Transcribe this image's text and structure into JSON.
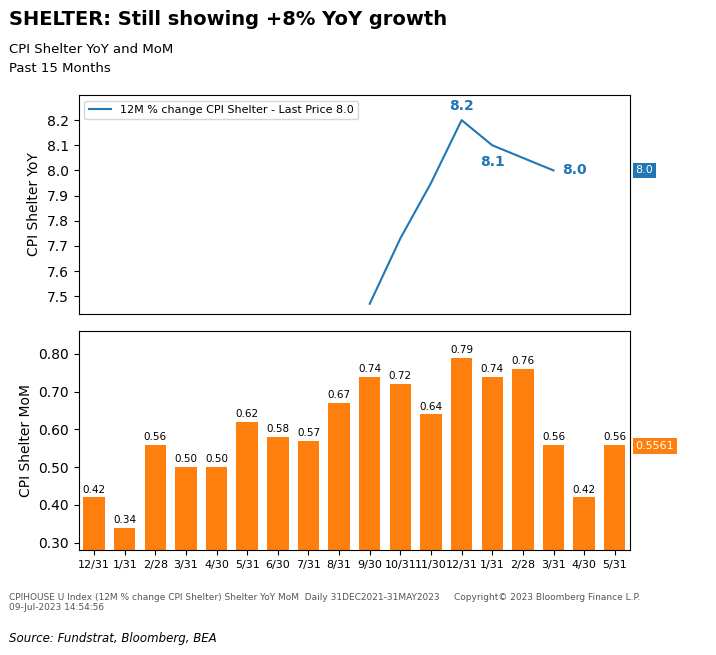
{
  "chart_data": [
    {
      "type": "line",
      "title": "SHELTER: Still showing +8% YoY growth",
      "subtitles": [
        "CPI Shelter YoY and MoM",
        "Past 15 Months"
      ],
      "footer": "CPIHOUSE U Index (12M % change CPI Shelter) Shelter YoY MoM  Daily 31DEC2021-31MAY2023     Copyright© 2023 Bloomberg Finance L.P.               09-Jul-2023 14:54:56",
      "source": "Source: Fundstrat, Bloomberg, BEA",
      "ylabel": "CPI Shelter YoY",
      "x": [
        9,
        10,
        11,
        12,
        13,
        14,
        15
      ],
      "series": [
        {
          "name": "12M % change CPI Shelter - Last Price 8.0",
          "values": [
            7.47,
            7.73,
            7.95,
            8.2,
            8.1,
            8.05,
            8.0
          ]
        }
      ],
      "xlim": [
        -0.5,
        17.5
      ],
      "ylim": [
        7.43,
        8.3
      ],
      "yticks": [
        7.5,
        7.6,
        7.7,
        7.8,
        7.9,
        8.0,
        8.1,
        8.2
      ],
      "tick_labels": "y",
      "legend": "upper left",
      "annotations": [
        {
          "text": "8.2",
          "x": 12,
          "y": 8.2
        },
        {
          "text": "8.1",
          "x": 13,
          "y": 8.1
        },
        {
          "text": "8.0",
          "x": 15,
          "y": 8.0
        }
      ],
      "last_price": {
        "value": 8.0,
        "label": "8.0"
      }
    },
    {
      "type": "bar",
      "ylabel": "CPI Shelter MoM",
      "categories": [
        "12/31",
        "1/31",
        "2/28",
        "3/31",
        "4/30",
        "5/31",
        "6/30",
        "7/31",
        "8/31",
        "9/30",
        "10/31",
        "11/30",
        "12/31",
        "1/31",
        "2/28",
        "3/31",
        "4/30",
        "5/31"
      ],
      "values": [
        0.42,
        0.34,
        0.56,
        0.5,
        0.5,
        0.62,
        0.58,
        0.57,
        0.67,
        0.74,
        0.72,
        0.64,
        0.79,
        0.74,
        0.76,
        0.56,
        0.42,
        0.56
      ],
      "value_labels": [
        "0.42",
        "0.34",
        "0.56",
        "0.50",
        "0.50",
        "0.62",
        "0.58",
        "0.57",
        "0.67",
        "0.74",
        "0.72",
        "0.64",
        "0.79",
        "0.74",
        "0.76",
        "0.56",
        "0.42",
        "0.56"
      ],
      "data_labels": true,
      "ylim": [
        0.28,
        0.86
      ],
      "yticks": [
        {
          "value": 0.3,
          "label": "0.30"
        },
        {
          "value": 0.4,
          "label": "0.40"
        },
        {
          "value": 0.5,
          "label": "0.50"
        },
        {
          "value": 0.6,
          "label": "0.60"
        },
        {
          "value": 0.7,
          "label": "0.70"
        },
        {
          "value": 0.8,
          "label": "0.80"
        }
      ],
      "last_price": {
        "value": 0.5561,
        "label": "0.5561"
      }
    }
  ]
}
